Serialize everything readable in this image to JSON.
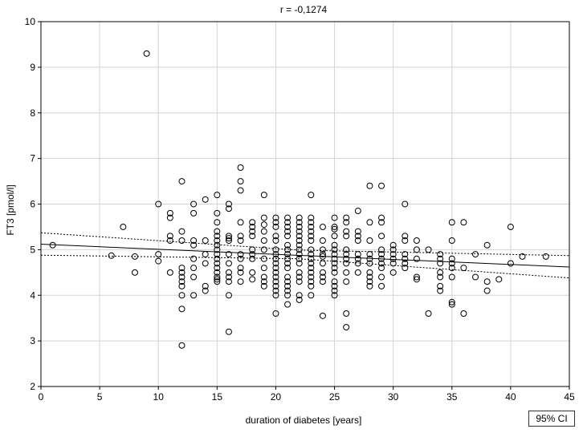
{
  "chart_data": {
    "type": "scatter",
    "title": "r = -0,1274",
    "xlabel": "duration of diabetes [years]",
    "ylabel": "FT3 [pmol/l]",
    "xlim": [
      0,
      45
    ],
    "ylim": [
      2,
      10
    ],
    "xticks": [
      0,
      5,
      10,
      15,
      20,
      25,
      30,
      35,
      40,
      45
    ],
    "yticks": [
      2,
      3,
      4,
      5,
      6,
      7,
      8,
      9,
      10
    ],
    "grid": true,
    "ci_label": "95% CI",
    "regression": {
      "x": [
        0,
        45
      ],
      "y": [
        5.12,
        4.62
      ]
    },
    "ci_upper": {
      "x": [
        0,
        22,
        45
      ],
      "y": [
        5.37,
        4.99,
        4.87
      ]
    },
    "ci_lower": {
      "x": [
        0,
        22,
        45
      ],
      "y": [
        4.88,
        4.8,
        4.38
      ]
    },
    "points": [
      [
        1,
        5.1
      ],
      [
        6,
        4.87
      ],
      [
        7,
        5.5
      ],
      [
        8,
        4.5
      ],
      [
        8,
        4.85
      ],
      [
        9,
        9.3
      ],
      [
        10,
        6.0
      ],
      [
        10,
        4.9
      ],
      [
        10,
        4.75
      ],
      [
        11,
        5.8
      ],
      [
        11,
        5.7
      ],
      [
        11,
        5.3
      ],
      [
        11,
        5.2
      ],
      [
        11,
        4.5
      ],
      [
        12,
        6.5
      ],
      [
        12,
        5.4
      ],
      [
        12,
        5.2
      ],
      [
        12,
        4.6
      ],
      [
        12,
        4.5
      ],
      [
        12,
        4.4
      ],
      [
        12,
        4.3
      ],
      [
        12,
        4.2
      ],
      [
        12,
        4.0
      ],
      [
        12,
        3.7
      ],
      [
        12,
        2.9
      ],
      [
        13,
        6.0
      ],
      [
        13,
        5.8
      ],
      [
        13,
        5.2
      ],
      [
        13,
        5.1
      ],
      [
        13,
        4.8
      ],
      [
        13,
        4.6
      ],
      [
        13,
        4.4
      ],
      [
        13,
        4.0
      ],
      [
        14,
        6.1
      ],
      [
        14,
        5.2
      ],
      [
        14,
        4.9
      ],
      [
        14,
        4.7
      ],
      [
        14,
        4.2
      ],
      [
        14,
        4.1
      ],
      [
        15,
        6.2
      ],
      [
        15,
        5.8
      ],
      [
        15,
        5.6
      ],
      [
        15,
        5.4
      ],
      [
        15,
        5.3
      ],
      [
        15,
        5.2
      ],
      [
        15,
        5.1
      ],
      [
        15,
        5.0
      ],
      [
        15,
        4.9
      ],
      [
        15,
        4.8
      ],
      [
        15,
        4.7
      ],
      [
        15,
        4.6
      ],
      [
        15,
        4.5
      ],
      [
        15,
        4.4
      ],
      [
        15,
        4.35
      ],
      [
        15,
        4.3
      ],
      [
        16,
        6.0
      ],
      [
        16,
        5.9
      ],
      [
        16,
        5.3
      ],
      [
        16,
        5.25
      ],
      [
        16,
        5.2
      ],
      [
        16,
        4.9
      ],
      [
        16,
        4.7
      ],
      [
        16,
        4.5
      ],
      [
        16,
        4.4
      ],
      [
        16,
        4.3
      ],
      [
        16,
        4.0
      ],
      [
        16,
        3.2
      ],
      [
        17,
        6.8
      ],
      [
        17,
        6.5
      ],
      [
        17,
        6.3
      ],
      [
        17,
        5.6
      ],
      [
        17,
        5.3
      ],
      [
        17,
        5.2
      ],
      [
        17,
        4.9
      ],
      [
        17,
        4.8
      ],
      [
        17,
        4.6
      ],
      [
        17,
        4.5
      ],
      [
        17,
        4.3
      ],
      [
        18,
        5.6
      ],
      [
        18,
        5.5
      ],
      [
        18,
        5.4
      ],
      [
        18,
        5.3
      ],
      [
        18,
        5.0
      ],
      [
        18,
        4.9
      ],
      [
        18,
        4.8
      ],
      [
        18,
        4.5
      ],
      [
        18,
        4.35
      ],
      [
        19,
        6.2
      ],
      [
        19,
        5.7
      ],
      [
        19,
        5.55
      ],
      [
        19,
        5.4
      ],
      [
        19,
        5.2
      ],
      [
        19,
        5.0
      ],
      [
        19,
        4.8
      ],
      [
        19,
        4.6
      ],
      [
        19,
        4.4
      ],
      [
        19,
        4.3
      ],
      [
        19,
        4.2
      ],
      [
        20,
        5.7
      ],
      [
        20,
        5.6
      ],
      [
        20,
        5.5
      ],
      [
        20,
        5.3
      ],
      [
        20,
        5.2
      ],
      [
        20,
        5.0
      ],
      [
        20,
        4.9
      ],
      [
        20,
        4.8
      ],
      [
        20,
        4.7
      ],
      [
        20,
        4.6
      ],
      [
        20,
        4.5
      ],
      [
        20,
        4.4
      ],
      [
        20,
        4.3
      ],
      [
        20,
        4.2
      ],
      [
        20,
        4.1
      ],
      [
        20,
        4.0
      ],
      [
        20,
        3.6
      ],
      [
        21,
        5.7
      ],
      [
        21,
        5.6
      ],
      [
        21,
        5.5
      ],
      [
        21,
        5.4
      ],
      [
        21,
        5.3
      ],
      [
        21,
        5.1
      ],
      [
        21,
        5.0
      ],
      [
        21,
        4.9
      ],
      [
        21,
        4.8
      ],
      [
        21,
        4.7
      ],
      [
        21,
        4.6
      ],
      [
        21,
        4.4
      ],
      [
        21,
        4.3
      ],
      [
        21,
        4.2
      ],
      [
        21,
        4.1
      ],
      [
        21,
        4.0
      ],
      [
        21,
        3.8
      ],
      [
        22,
        5.7
      ],
      [
        22,
        5.6
      ],
      [
        22,
        5.5
      ],
      [
        22,
        5.4
      ],
      [
        22,
        5.3
      ],
      [
        22,
        5.2
      ],
      [
        22,
        5.1
      ],
      [
        22,
        5.0
      ],
      [
        22,
        4.9
      ],
      [
        22,
        4.8
      ],
      [
        22,
        4.7
      ],
      [
        22,
        4.5
      ],
      [
        22,
        4.4
      ],
      [
        22,
        4.3
      ],
      [
        22,
        4.0
      ],
      [
        22,
        3.9
      ],
      [
        23,
        6.2
      ],
      [
        23,
        5.7
      ],
      [
        23,
        5.6
      ],
      [
        23,
        5.5
      ],
      [
        23,
        5.4
      ],
      [
        23,
        5.3
      ],
      [
        23,
        5.2
      ],
      [
        23,
        5.0
      ],
      [
        23,
        4.9
      ],
      [
        23,
        4.8
      ],
      [
        23,
        4.7
      ],
      [
        23,
        4.6
      ],
      [
        23,
        4.5
      ],
      [
        23,
        4.4
      ],
      [
        23,
        4.3
      ],
      [
        23,
        4.2
      ],
      [
        23,
        4.0
      ],
      [
        24,
        5.5
      ],
      [
        24,
        5.2
      ],
      [
        24,
        5.0
      ],
      [
        24,
        4.9
      ],
      [
        24,
        4.85
      ],
      [
        24,
        4.7
      ],
      [
        24,
        4.5
      ],
      [
        24,
        4.4
      ],
      [
        24,
        4.3
      ],
      [
        24,
        3.55
      ],
      [
        25,
        5.7
      ],
      [
        25,
        5.5
      ],
      [
        25,
        5.45
      ],
      [
        25,
        5.3
      ],
      [
        25,
        5.1
      ],
      [
        25,
        5.0
      ],
      [
        25,
        4.9
      ],
      [
        25,
        4.8
      ],
      [
        25,
        4.7
      ],
      [
        25,
        4.6
      ],
      [
        25,
        4.5
      ],
      [
        25,
        4.3
      ],
      [
        25,
        4.2
      ],
      [
        25,
        4.1
      ],
      [
        25,
        4.0
      ],
      [
        26,
        5.7
      ],
      [
        26,
        5.6
      ],
      [
        26,
        5.4
      ],
      [
        26,
        5.3
      ],
      [
        26,
        5.0
      ],
      [
        26,
        4.9
      ],
      [
        26,
        4.8
      ],
      [
        26,
        4.7
      ],
      [
        26,
        4.5
      ],
      [
        26,
        4.3
      ],
      [
        26,
        3.6
      ],
      [
        26,
        3.3
      ],
      [
        27,
        5.85
      ],
      [
        27,
        5.4
      ],
      [
        27,
        5.3
      ],
      [
        27,
        5.2
      ],
      [
        27,
        4.9
      ],
      [
        27,
        4.8
      ],
      [
        27,
        4.7
      ],
      [
        27,
        4.5
      ],
      [
        28,
        6.4
      ],
      [
        28,
        5.6
      ],
      [
        28,
        5.2
      ],
      [
        28,
        4.9
      ],
      [
        28,
        4.8
      ],
      [
        28,
        4.7
      ],
      [
        28,
        4.5
      ],
      [
        28,
        4.4
      ],
      [
        28,
        4.3
      ],
      [
        28,
        4.2
      ],
      [
        29,
        6.4
      ],
      [
        29,
        5.7
      ],
      [
        29,
        5.6
      ],
      [
        29,
        5.3
      ],
      [
        29,
        5.0
      ],
      [
        29,
        4.9
      ],
      [
        29,
        4.8
      ],
      [
        29,
        4.7
      ],
      [
        29,
        4.6
      ],
      [
        29,
        4.4
      ],
      [
        29,
        4.2
      ],
      [
        30,
        5.1
      ],
      [
        30,
        5.0
      ],
      [
        30,
        4.9
      ],
      [
        30,
        4.8
      ],
      [
        30,
        4.7
      ],
      [
        30,
        4.5
      ],
      [
        31,
        6.0
      ],
      [
        31,
        5.3
      ],
      [
        31,
        5.2
      ],
      [
        31,
        4.9
      ],
      [
        31,
        4.8
      ],
      [
        31,
        4.7
      ],
      [
        31,
        4.6
      ],
      [
        32,
        5.2
      ],
      [
        32,
        5.0
      ],
      [
        32,
        4.8
      ],
      [
        32,
        4.4
      ],
      [
        32,
        4.35
      ],
      [
        33,
        5.0
      ],
      [
        33,
        3.6
      ],
      [
        34,
        4.9
      ],
      [
        34,
        4.8
      ],
      [
        34,
        4.7
      ],
      [
        34,
        4.5
      ],
      [
        34,
        4.4
      ],
      [
        34,
        4.2
      ],
      [
        34,
        4.1
      ],
      [
        35,
        5.6
      ],
      [
        35,
        5.2
      ],
      [
        35,
        4.8
      ],
      [
        35,
        4.7
      ],
      [
        35,
        4.6
      ],
      [
        35,
        4.4
      ],
      [
        35,
        3.85
      ],
      [
        35,
        3.8
      ],
      [
        36,
        5.6
      ],
      [
        36,
        4.6
      ],
      [
        36,
        3.6
      ],
      [
        37,
        4.9
      ],
      [
        37,
        4.4
      ],
      [
        38,
        5.1
      ],
      [
        38,
        4.3
      ],
      [
        38,
        4.1
      ],
      [
        39,
        4.35
      ],
      [
        40,
        5.5
      ],
      [
        40,
        4.7
      ],
      [
        41,
        4.85
      ],
      [
        43,
        4.85
      ]
    ]
  }
}
